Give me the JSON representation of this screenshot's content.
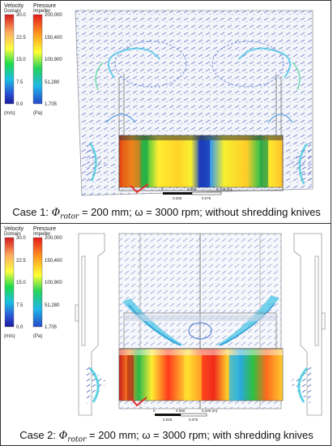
{
  "panels": [
    {
      "legend": {
        "velocity": {
          "title": "Velocity",
          "subtitle": "Domain",
          "ticks": [
            "30.0",
            "22.5",
            "15.0",
            "7.5",
            "0.0"
          ],
          "unit": "(m/s)"
        },
        "pressure": {
          "title": "Pressure",
          "subtitle": "Impeller",
          "ticks": [
            "200,000",
            "150,400",
            "100,900",
            "51,280",
            "1,705"
          ],
          "unit": "(Pa)"
        }
      },
      "scale": {
        "labels": [
          "0",
          "0.050",
          "0.100 (m)"
        ],
        "sublabels": [
          "0.025",
          "0.075"
        ]
      },
      "caption": {
        "prefix": "Case 1: ",
        "phi": "Φ",
        "sub": "rotor",
        "rest": " = 200 mm; ω = 3000 rpm; without shredding knives"
      }
    },
    {
      "legend": {
        "velocity": {
          "title": "Velocity",
          "subtitle": "Domain",
          "ticks": [
            "30.0",
            "22.5",
            "15.0",
            "7.5",
            "0.0"
          ],
          "unit": "(m/s)"
        },
        "pressure": {
          "title": "Pressure",
          "subtitle": "Impeller",
          "ticks": [
            "200,000",
            "150,400",
            "100,900",
            "51,280",
            "1,705"
          ],
          "unit": "(Pa)"
        }
      },
      "scale": {
        "labels": [
          "0",
          "0.050",
          "0.100 (m)"
        ],
        "sublabels": [
          "0.025",
          "0.075"
        ]
      },
      "caption": {
        "prefix": "Case 2: ",
        "phi": "Φ",
        "sub": "rotor",
        "rest": " = 200 mm; ω = 3000 rpm; with shredding knives"
      }
    }
  ],
  "colors": {
    "velocity_scale": [
      "#d7191c",
      "#fdae61",
      "#ffff3f",
      "#1fdc4a",
      "#19c0e0",
      "#2b55d9",
      "#1a1a9a"
    ],
    "pressure_scale": [
      "#e31a1c",
      "#ff9b21",
      "#ffff33",
      "#27d35a",
      "#20b8e8",
      "#2747c8"
    ]
  }
}
